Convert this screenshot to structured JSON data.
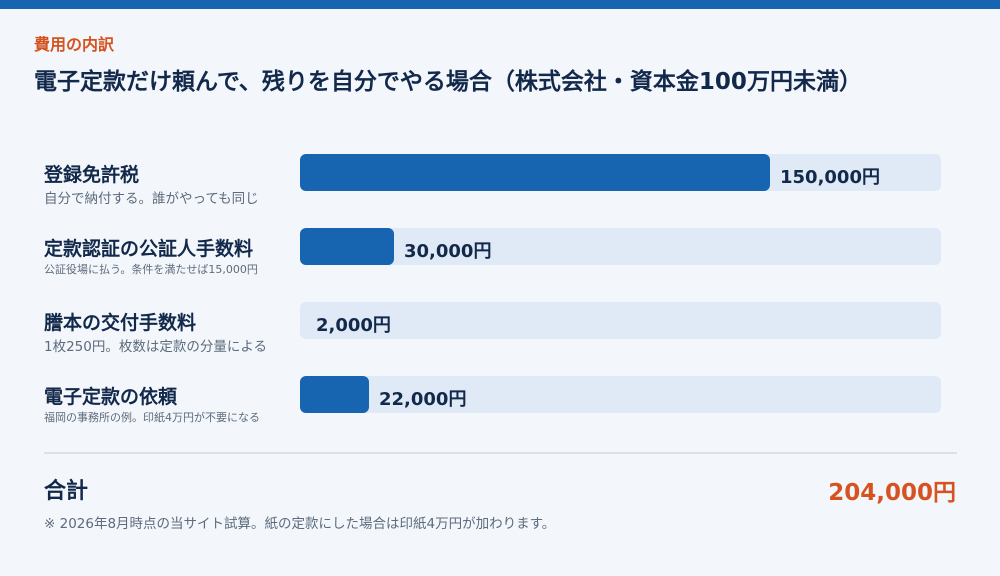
{
  "header": {
    "eyebrow": "費用の内訳",
    "title": "電子定款だけ頼んで、残りを自分でやる場合（株式会社・資本金100万円未満）"
  },
  "chart_data": {
    "type": "bar",
    "orientation": "horizontal",
    "categories": [
      "登録免許税",
      "定款認証の公証人手数料",
      "謄本の交付手数料",
      "電子定款の依頼"
    ],
    "subtitles": [
      "自分で納付する。誰がやっても同じ",
      "公証役場に払う。条件を満たせば15,000円",
      "1枚250円。枚数は定款の分量による",
      "福岡の事務所の例。印紙4万円が不要になる"
    ],
    "values": [
      150000,
      30000,
      2000,
      22000
    ],
    "value_labels": [
      "150,000円",
      "30,000円",
      "2,000円",
      "22,000円"
    ],
    "xlim": [
      0,
      204000
    ],
    "colors": {
      "bar": "#1764b0",
      "track": "#dfeaf6",
      "accent": "#d6531f"
    },
    "grid": false
  },
  "summary": {
    "total_label": "合計",
    "total_value": "204,000円",
    "note": "※ 2026年8月時点の当サイト試算。紙の定款にした場合は印紙4万円が加わります。"
  }
}
